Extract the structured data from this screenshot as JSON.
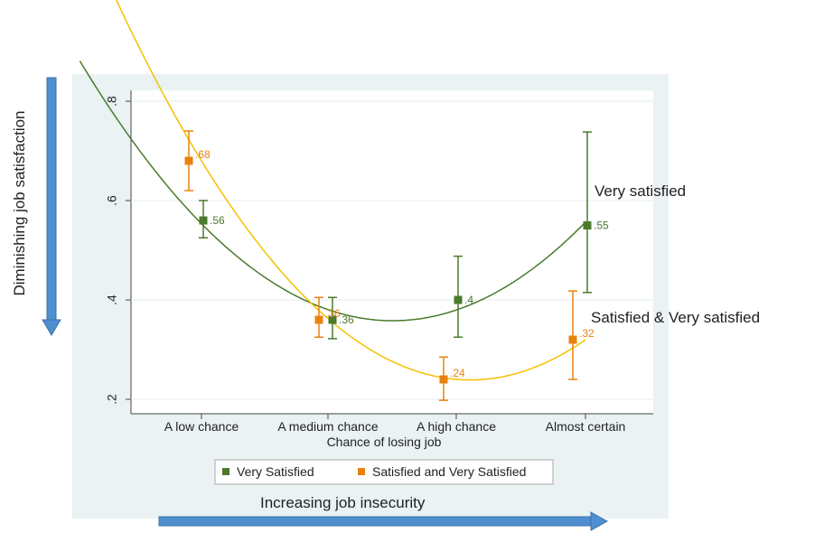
{
  "chart_data": {
    "type": "scatter",
    "title": "",
    "xlabel": "Chance of losing job",
    "ylabel": "",
    "categories": [
      "A low chance",
      "A medium chance",
      "A high chance",
      "Almost certain"
    ],
    "ylim": [
      0.18,
      0.82
    ],
    "yticks": [
      0.2,
      0.4,
      0.6,
      0.8
    ],
    "ytick_labels": [
      ".2",
      ".4",
      ".6",
      ".8"
    ],
    "grid": true,
    "legend_position": "bottom",
    "series": [
      {
        "name": "Very Satisfied",
        "color": "#4a7a2c",
        "values": [
          0.56,
          0.36,
          0.4,
          0.55
        ],
        "lower": [
          0.525,
          0.322,
          0.325,
          0.415
        ],
        "upper": [
          0.6,
          0.405,
          0.488,
          0.738
        ],
        "value_labels": [
          ".56",
          ".36",
          ".4",
          ".55"
        ],
        "fit": "quadratic"
      },
      {
        "name": "Satisfied and Very Satisfied",
        "color": "#e8820f",
        "fit_color": "#f5c000",
        "values": [
          0.68,
          0.36,
          0.24,
          0.32
        ],
        "lower": [
          0.62,
          0.325,
          0.198,
          0.24
        ],
        "upper": [
          0.74,
          0.405,
          0.285,
          0.418
        ],
        "value_labels": [
          ".68",
          ".36",
          ".24",
          ".32"
        ],
        "fit": "cubic"
      }
    ]
  },
  "annotations": {
    "very_satisfied": "Very  satisfied",
    "satisfied_very": "Satisfied & Very  satisfied",
    "increasing": "Increasing job insecurity",
    "diminishing": "Diminishing job satisfaction"
  },
  "colors": {
    "panel_background": "#eaf2f3",
    "arrow": "#4f8fcf"
  }
}
